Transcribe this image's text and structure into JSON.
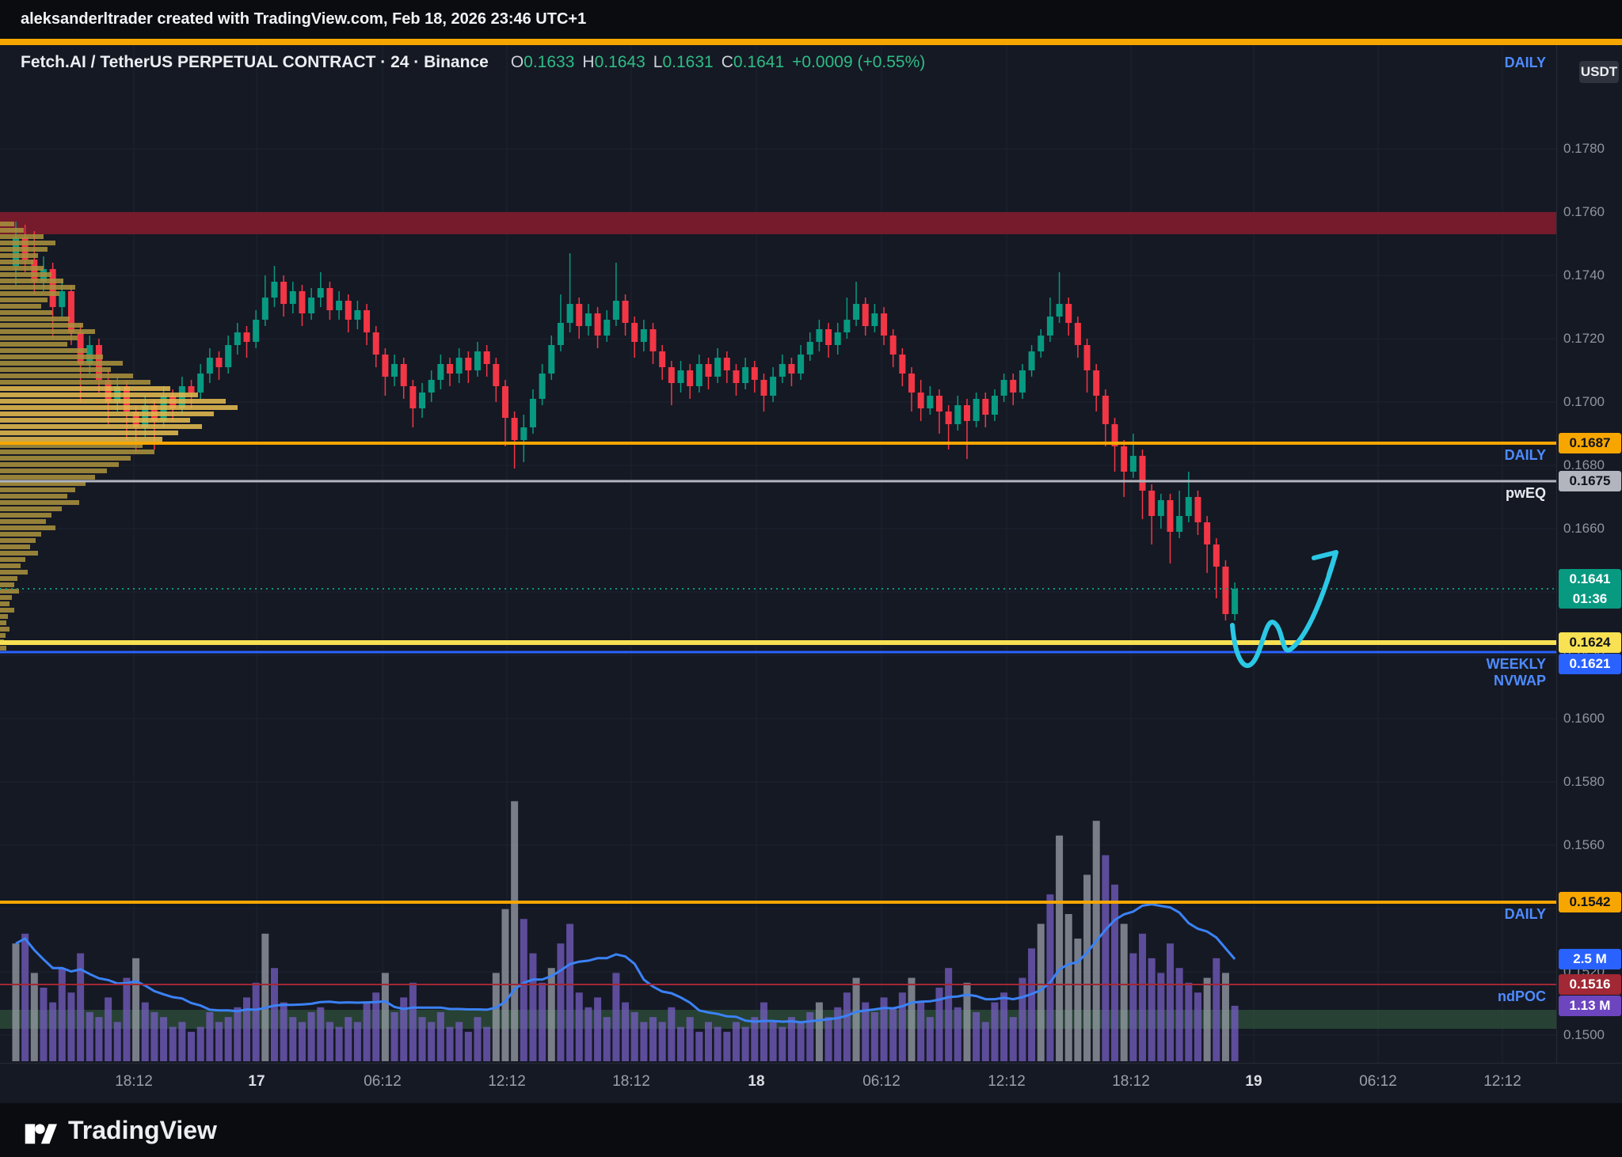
{
  "meta": {
    "title_bar": "aleksanderltrader created with TradingView.com, Feb 18, 2026 23:46 UTC+1"
  },
  "header": {
    "symbol": "Fetch.AI / TetherUS PERPETUAL CONTRACT · 24 · Binance",
    "ohlc": {
      "o_label": "O",
      "o": "0.1633",
      "h_label": "H",
      "h": "0.1643",
      "l_label": "L",
      "l": "0.1631",
      "c_label": "C",
      "c": "0.1641",
      "change": "+0.0009 (+0.55%)"
    },
    "timeframe_label": "DAILY",
    "currency_badge": "USDT"
  },
  "footer": {
    "brand": "TradingView"
  },
  "chart_data": {
    "type": "candlestick",
    "title": "Fetch.AI / TetherUS PERPETUAL CONTRACT · 24 · Binance",
    "price_axis": {
      "min": 0.15,
      "max": 0.178,
      "tick_step": 0.002
    },
    "time_labels": [
      {
        "label": "18:12",
        "major": false
      },
      {
        "label": "17",
        "major": true
      },
      {
        "label": "06:12",
        "major": false
      },
      {
        "label": "12:12",
        "major": false
      },
      {
        "label": "18:12",
        "major": false
      },
      {
        "label": "18",
        "major": true
      },
      {
        "label": "06:12",
        "major": false
      },
      {
        "label": "12:12",
        "major": false
      },
      {
        "label": "18:12",
        "major": false
      },
      {
        "label": "19",
        "major": true
      },
      {
        "label": "06:12",
        "major": false
      },
      {
        "label": "12:12",
        "major": false
      }
    ],
    "colors": {
      "up": "#089981",
      "down": "#f23645",
      "grid": "#1d2330",
      "vol_purple": "#7a5fc7",
      "vol_gray": "#9fa4ae",
      "vol_ma": "#3b82f6",
      "vp_bright": "#e3b94e",
      "vp_dim": "#a8903c",
      "arrow": "#2bc8e6",
      "current": "#089981"
    },
    "top_level": {
      "label": "DAILY",
      "color": "#f7a600"
    },
    "zones": [
      {
        "from": 0.1753,
        "to": 0.176,
        "color": "rgba(128,28,44,0.9)"
      },
      {
        "from": 0.1502,
        "to": 0.1508,
        "color": "rgba(52,94,64,0.6)"
      }
    ],
    "levels": [
      {
        "price": 0.1687,
        "color": "#f7a600",
        "thickness": 4,
        "label": "0.1687",
        "label_text_color": "#10131a",
        "tag": "DAILY",
        "tag_class": "tag-blue"
      },
      {
        "price": 0.1675,
        "color": "#b2b5be",
        "thickness": 3,
        "label": "0.1675",
        "label_text_color": "#10131a",
        "tag": "pwEQ",
        "tag_class": "tag-white"
      },
      {
        "price": 0.1624,
        "color": "#f8e152",
        "thickness": 6,
        "label": "0.1624",
        "label_text_color": "#10131a"
      },
      {
        "price": 0.1621,
        "color": "#2962ff",
        "thickness": 3,
        "label": "0.1621",
        "label_text_color": "#ffffff",
        "tag": "WEEKLY\nNVWAP",
        "tag_class": "tag-blue"
      },
      {
        "price": 0.1542,
        "color": "#f7a600",
        "thickness": 4,
        "label": "0.1542",
        "label_text_color": "#10131a",
        "tag": "DAILY",
        "tag_class": "tag-blue"
      },
      {
        "price": 0.1516,
        "color": "#a12834",
        "thickness": 2,
        "label": "0.1516",
        "label_text_color": "#ffffff",
        "tag": "ndPOC",
        "tag_class": "tag-blue"
      }
    ],
    "current_price": {
      "price": 0.1641,
      "label": "0.1641",
      "countdown": "01:36",
      "color": "#089981"
    },
    "volume_badges": [
      {
        "kind": "ma",
        "label": "2.5 M",
        "color": "#2962ff",
        "text_color": "#ffffff"
      },
      {
        "kind": "last",
        "label": "1.13 M",
        "color": "#6c45bf",
        "text_color": "#ffffff"
      }
    ],
    "annotations": [
      {
        "type": "arrow",
        "color": "#2bc8e6"
      }
    ],
    "candles": [
      [
        0.1743,
        0.1757,
        0.1737,
        0.1752
      ],
      [
        0.1752,
        0.1756,
        0.1741,
        0.1745
      ],
      [
        0.1745,
        0.1754,
        0.1734,
        0.1738
      ],
      [
        0.1738,
        0.1746,
        0.1735,
        0.1742
      ],
      [
        0.1742,
        0.1744,
        0.172,
        0.173
      ],
      [
        0.173,
        0.1739,
        0.1727,
        0.1735
      ],
      [
        0.1735,
        0.1737,
        0.1718,
        0.1722
      ],
      [
        0.1722,
        0.1725,
        0.17,
        0.1712
      ],
      [
        0.1712,
        0.1721,
        0.1709,
        0.1718
      ],
      [
        0.1718,
        0.172,
        0.1703,
        0.1707
      ],
      [
        0.1707,
        0.171,
        0.1693,
        0.17
      ],
      [
        0.17,
        0.1708,
        0.1697,
        0.1705
      ],
      [
        0.1705,
        0.1707,
        0.1688,
        0.1697
      ],
      [
        0.1697,
        0.1699,
        0.1684,
        0.1692
      ],
      [
        0.1692,
        0.1702,
        0.1689,
        0.1699
      ],
      [
        0.1699,
        0.1701,
        0.1685,
        0.1694
      ],
      [
        0.1694,
        0.1705,
        0.1692,
        0.1702
      ],
      [
        0.1702,
        0.1704,
        0.1694,
        0.1698
      ],
      [
        0.1698,
        0.1708,
        0.1696,
        0.1705
      ],
      [
        0.1705,
        0.1707,
        0.1698,
        0.1703
      ],
      [
        0.1703,
        0.1712,
        0.1701,
        0.1709
      ],
      [
        0.1709,
        0.1717,
        0.1706,
        0.1714
      ],
      [
        0.1714,
        0.1716,
        0.1707,
        0.1711
      ],
      [
        0.1711,
        0.1721,
        0.1709,
        0.1718
      ],
      [
        0.1718,
        0.1725,
        0.1715,
        0.1722
      ],
      [
        0.1722,
        0.1724,
        0.1714,
        0.1719
      ],
      [
        0.1719,
        0.1729,
        0.1717,
        0.1726
      ],
      [
        0.1726,
        0.174,
        0.1724,
        0.1733
      ],
      [
        0.1733,
        0.1743,
        0.173,
        0.1738
      ],
      [
        0.1738,
        0.174,
        0.1727,
        0.1731
      ],
      [
        0.1731,
        0.1738,
        0.1728,
        0.1735
      ],
      [
        0.1735,
        0.1737,
        0.1724,
        0.1728
      ],
      [
        0.1728,
        0.1736,
        0.1726,
        0.1733
      ],
      [
        0.1733,
        0.1741,
        0.173,
        0.1736
      ],
      [
        0.1736,
        0.1738,
        0.1726,
        0.1729
      ],
      [
        0.1729,
        0.1735,
        0.1726,
        0.1732
      ],
      [
        0.1732,
        0.1734,
        0.1722,
        0.1726
      ],
      [
        0.1726,
        0.1732,
        0.1723,
        0.1729
      ],
      [
        0.1729,
        0.1731,
        0.1718,
        0.1722
      ],
      [
        0.1722,
        0.1724,
        0.1711,
        0.1715
      ],
      [
        0.1715,
        0.1717,
        0.1702,
        0.1708
      ],
      [
        0.1708,
        0.1715,
        0.1705,
        0.1712
      ],
      [
        0.1712,
        0.1714,
        0.1701,
        0.1705
      ],
      [
        0.1705,
        0.1707,
        0.1692,
        0.1698
      ],
      [
        0.1698,
        0.1706,
        0.1695,
        0.1703
      ],
      [
        0.1703,
        0.171,
        0.17,
        0.1707
      ],
      [
        0.1707,
        0.1715,
        0.1704,
        0.1712
      ],
      [
        0.1712,
        0.1714,
        0.1705,
        0.1709
      ],
      [
        0.1709,
        0.1717,
        0.1706,
        0.1714
      ],
      [
        0.1714,
        0.1716,
        0.1706,
        0.171
      ],
      [
        0.171,
        0.1719,
        0.1708,
        0.1716
      ],
      [
        0.1716,
        0.1718,
        0.1708,
        0.1712
      ],
      [
        0.1712,
        0.1714,
        0.17,
        0.1705
      ],
      [
        0.1705,
        0.1707,
        0.1686,
        0.1695
      ],
      [
        0.1695,
        0.1697,
        0.1679,
        0.1688
      ],
      [
        0.1688,
        0.1696,
        0.1681,
        0.1692
      ],
      [
        0.1692,
        0.1704,
        0.169,
        0.1701
      ],
      [
        0.1701,
        0.1712,
        0.1699,
        0.1709
      ],
      [
        0.1709,
        0.1721,
        0.1707,
        0.1718
      ],
      [
        0.1718,
        0.1734,
        0.1716,
        0.1725
      ],
      [
        0.1725,
        0.1747,
        0.1722,
        0.1731
      ],
      [
        0.1731,
        0.1733,
        0.172,
        0.1724
      ],
      [
        0.1724,
        0.1731,
        0.1721,
        0.1728
      ],
      [
        0.1728,
        0.173,
        0.1717,
        0.1721
      ],
      [
        0.1721,
        0.1729,
        0.1719,
        0.1726
      ],
      [
        0.1726,
        0.1744,
        0.1724,
        0.1732
      ],
      [
        0.1732,
        0.1734,
        0.1721,
        0.1725
      ],
      [
        0.1725,
        0.1727,
        0.1714,
        0.1719
      ],
      [
        0.1719,
        0.1726,
        0.1716,
        0.1723
      ],
      [
        0.1723,
        0.1725,
        0.1712,
        0.1716
      ],
      [
        0.1716,
        0.1718,
        0.1707,
        0.1711
      ],
      [
        0.1711,
        0.1713,
        0.1699,
        0.1706
      ],
      [
        0.1706,
        0.1713,
        0.1703,
        0.171
      ],
      [
        0.171,
        0.1712,
        0.1701,
        0.1705
      ],
      [
        0.1705,
        0.1715,
        0.1703,
        0.1712
      ],
      [
        0.1712,
        0.1714,
        0.1704,
        0.1708
      ],
      [
        0.1708,
        0.1717,
        0.1706,
        0.1714
      ],
      [
        0.1714,
        0.1716,
        0.1706,
        0.171
      ],
      [
        0.171,
        0.1712,
        0.1702,
        0.1706
      ],
      [
        0.1706,
        0.1714,
        0.1704,
        0.1711
      ],
      [
        0.1711,
        0.1713,
        0.1703,
        0.1707
      ],
      [
        0.1707,
        0.1709,
        0.1697,
        0.1702
      ],
      [
        0.1702,
        0.1711,
        0.17,
        0.1708
      ],
      [
        0.1708,
        0.1715,
        0.1706,
        0.1712
      ],
      [
        0.1712,
        0.1714,
        0.1705,
        0.1709
      ],
      [
        0.1709,
        0.1718,
        0.1707,
        0.1715
      ],
      [
        0.1715,
        0.1722,
        0.1713,
        0.1719
      ],
      [
        0.1719,
        0.1726,
        0.1716,
        0.1723
      ],
      [
        0.1723,
        0.1725,
        0.1714,
        0.1718
      ],
      [
        0.1718,
        0.1725,
        0.1715,
        0.1722
      ],
      [
        0.1722,
        0.1733,
        0.172,
        0.1726
      ],
      [
        0.1726,
        0.1738,
        0.1724,
        0.1731
      ],
      [
        0.1731,
        0.1733,
        0.1721,
        0.1724
      ],
      [
        0.1724,
        0.1731,
        0.1722,
        0.1728
      ],
      [
        0.1728,
        0.173,
        0.1718,
        0.1721
      ],
      [
        0.1721,
        0.1723,
        0.1711,
        0.1715
      ],
      [
        0.1715,
        0.1717,
        0.1705,
        0.1709
      ],
      [
        0.1709,
        0.1711,
        0.1697,
        0.1703
      ],
      [
        0.1703,
        0.1707,
        0.1694,
        0.1698
      ],
      [
        0.1698,
        0.1705,
        0.1696,
        0.1702
      ],
      [
        0.1702,
        0.1704,
        0.169,
        0.1697
      ],
      [
        0.1697,
        0.1699,
        0.1685,
        0.1693
      ],
      [
        0.1693,
        0.1702,
        0.1691,
        0.1699
      ],
      [
        0.1699,
        0.1701,
        0.1682,
        0.1694
      ],
      [
        0.1694,
        0.1703,
        0.1692,
        0.1701
      ],
      [
        0.1701,
        0.1703,
        0.1692,
        0.1696
      ],
      [
        0.1696,
        0.1704,
        0.1694,
        0.1702
      ],
      [
        0.1702,
        0.1709,
        0.17,
        0.1707
      ],
      [
        0.1707,
        0.1709,
        0.1699,
        0.1703
      ],
      [
        0.1703,
        0.1712,
        0.1701,
        0.171
      ],
      [
        0.171,
        0.1718,
        0.1708,
        0.1716
      ],
      [
        0.1716,
        0.1723,
        0.1714,
        0.1721
      ],
      [
        0.1721,
        0.1733,
        0.1719,
        0.1727
      ],
      [
        0.1727,
        0.1741,
        0.1725,
        0.1731
      ],
      [
        0.1731,
        0.1733,
        0.1721,
        0.1725
      ],
      [
        0.1725,
        0.1727,
        0.1714,
        0.1718
      ],
      [
        0.1718,
        0.172,
        0.1703,
        0.171
      ],
      [
        0.171,
        0.1712,
        0.1697,
        0.1702
      ],
      [
        0.1702,
        0.1704,
        0.1686,
        0.1693
      ],
      [
        0.1693,
        0.1695,
        0.1678,
        0.1686
      ],
      [
        0.1686,
        0.1688,
        0.167,
        0.1678
      ],
      [
        0.1678,
        0.169,
        0.1676,
        0.1683
      ],
      [
        0.1683,
        0.1685,
        0.1663,
        0.1672
      ],
      [
        0.1672,
        0.1674,
        0.1655,
        0.1664
      ],
      [
        0.1664,
        0.1671,
        0.166,
        0.1669
      ],
      [
        0.1669,
        0.1671,
        0.1649,
        0.1659
      ],
      [
        0.1659,
        0.1672,
        0.1657,
        0.1664
      ],
      [
        0.1664,
        0.1678,
        0.1662,
        0.167
      ],
      [
        0.167,
        0.1672,
        0.1658,
        0.1662
      ],
      [
        0.1662,
        0.1664,
        0.1646,
        0.1655
      ],
      [
        0.1655,
        0.1657,
        0.1638,
        0.1648
      ],
      [
        0.1648,
        0.165,
        0.1631,
        0.1633
      ],
      [
        0.1633,
        0.1643,
        0.1631,
        0.1641
      ]
    ],
    "volumes": [
      2.4,
      2.6,
      1.8,
      1.5,
      1.2,
      1.9,
      1.4,
      2.2,
      1.0,
      0.9,
      1.3,
      0.8,
      1.7,
      2.1,
      1.2,
      1.0,
      0.9,
      0.7,
      0.8,
      0.6,
      0.7,
      1.0,
      0.8,
      0.9,
      1.1,
      1.3,
      1.6,
      2.6,
      1.9,
      1.2,
      0.9,
      0.8,
      1.0,
      1.1,
      0.8,
      0.7,
      0.9,
      0.8,
      1.2,
      1.4,
      1.8,
      1.0,
      1.3,
      1.6,
      0.9,
      0.8,
      1.0,
      0.7,
      0.8,
      0.6,
      0.9,
      0.7,
      1.8,
      3.1,
      5.3,
      2.9,
      2.2,
      1.6,
      1.9,
      2.4,
      2.8,
      1.4,
      1.1,
      1.3,
      0.9,
      1.8,
      1.2,
      1.0,
      0.8,
      0.9,
      0.8,
      1.1,
      0.7,
      0.9,
      0.6,
      0.8,
      0.7,
      0.6,
      0.8,
      0.7,
      0.9,
      1.2,
      0.8,
      0.7,
      0.9,
      0.8,
      1.0,
      1.2,
      0.9,
      1.1,
      1.4,
      1.7,
      1.2,
      1.0,
      1.3,
      1.1,
      1.4,
      1.7,
      1.2,
      0.9,
      1.5,
      1.9,
      1.1,
      1.6,
      1.0,
      0.8,
      1.2,
      1.4,
      0.9,
      1.7,
      2.3,
      2.8,
      3.4,
      4.6,
      3.0,
      2.5,
      3.8,
      4.9,
      4.2,
      3.6,
      2.8,
      2.2,
      2.6,
      2.1,
      1.8,
      2.4,
      1.9,
      1.6,
      1.4,
      1.7,
      2.1,
      1.8,
      1.13
    ],
    "volume_gray_indices": [
      0,
      2,
      13,
      27,
      40,
      52,
      53,
      54,
      58,
      87,
      91,
      97,
      103,
      111,
      113,
      114,
      115,
      116,
      117,
      120,
      129,
      131
    ],
    "volume_profile": {
      "top_price": 0.1757,
      "price_step": 0.0002,
      "rows": [
        18,
        30,
        55,
        70,
        60,
        48,
        42,
        55,
        65,
        80,
        95,
        75,
        60,
        52,
        66,
        88,
        105,
        120,
        98,
        85,
        110,
        130,
        155,
        140,
        168,
        190,
        215,
        250,
        285,
        300,
        270,
        240,
        255,
        225,
        205,
        180,
        195,
        165,
        150,
        135,
        120,
        108,
        95,
        85,
        100,
        78,
        65,
        58,
        70,
        52,
        45,
        38,
        48,
        32,
        26,
        35,
        22,
        18,
        24,
        15,
        12,
        18,
        10,
        8,
        12,
        7,
        5,
        8
      ]
    }
  }
}
